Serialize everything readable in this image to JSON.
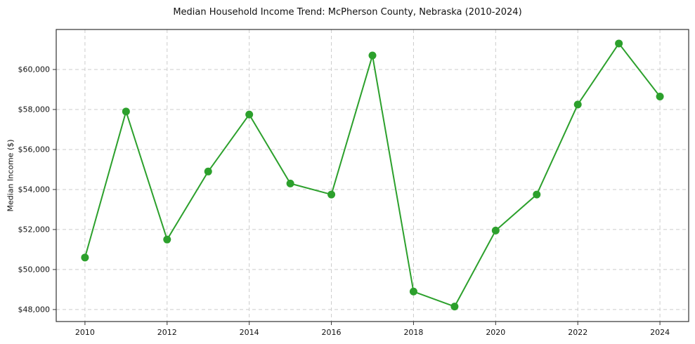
{
  "chart_data": {
    "type": "line",
    "title": "Median Household Income Trend: McPherson County, Nebraska (2010-2024)",
    "xlabel": "",
    "ylabel": "Median Income ($)",
    "x": [
      2010,
      2011,
      2012,
      2013,
      2014,
      2015,
      2016,
      2017,
      2018,
      2019,
      2020,
      2021,
      2022,
      2023,
      2024
    ],
    "values": [
      50600,
      57900,
      51500,
      54900,
      57750,
      54300,
      53750,
      60700,
      48900,
      48150,
      51950,
      53750,
      58250,
      61300,
      58650
    ],
    "x_ticks": [
      2010,
      2012,
      2014,
      2016,
      2018,
      2020,
      2022,
      2024
    ],
    "y_ticks": [
      48000,
      50000,
      52000,
      54000,
      56000,
      58000,
      60000
    ],
    "y_tick_labels": [
      "$48,000",
      "$50,000",
      "$52,000",
      "$54,000",
      "$56,000",
      "$58,000",
      "$60,000"
    ],
    "xlim": [
      2009.3,
      2024.7
    ],
    "ylim": [
      47400,
      62000
    ],
    "grid": true,
    "legend": false,
    "line_color": "#2ca02c",
    "grid_color": "#cccccc",
    "axis_color": "#333333",
    "text_color": "#111111"
  }
}
